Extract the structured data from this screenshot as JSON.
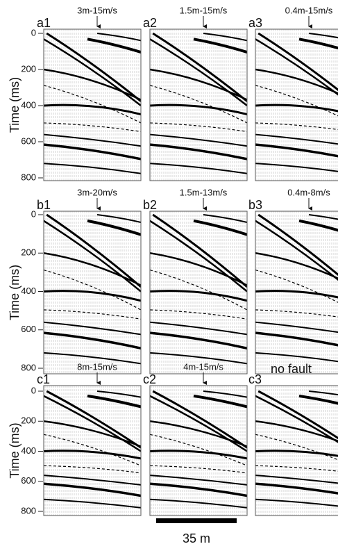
{
  "panels": [
    {
      "label": "a1",
      "title": "3m-15m/s"
    },
    {
      "label": "a2",
      "title": "1.5m-15m/s"
    },
    {
      "label": "a3",
      "title": "0.4m-15m/s"
    },
    {
      "label": "b1",
      "title": "3m-20m/s"
    },
    {
      "label": "b2",
      "title": "1.5m-13m/s"
    },
    {
      "label": "b3",
      "title": "0.4m-8m/s"
    },
    {
      "label": "c1",
      "title": "8m-15m/s"
    },
    {
      "label": "c2",
      "title": "4m-15m/s"
    },
    {
      "label": "c3",
      "title": "no fault"
    }
  ],
  "y_axis": {
    "label": "Time (ms)",
    "ticks": [
      0,
      200,
      400,
      600,
      800
    ]
  },
  "scale_bar": {
    "label": "35 m"
  }
}
